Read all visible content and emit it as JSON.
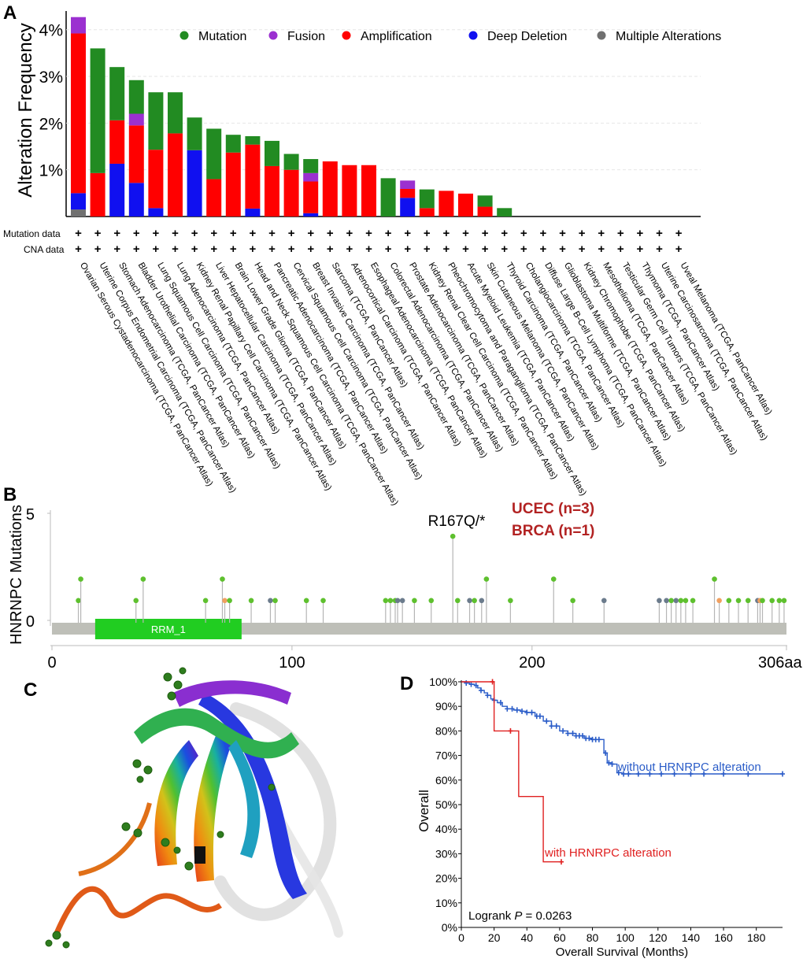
{
  "panel_labels": [
    "A",
    "B",
    "C",
    "D"
  ],
  "colors": {
    "mutation": "#228B22",
    "fusion": "#9B30D0",
    "amplification": "#FF0000",
    "deep_deletion": "#1010F0",
    "multiple": "#707070",
    "lollipop_green": "#5EC02E",
    "lollipop_orange": "#F0A060",
    "lollipop_grey": "#6B7B8C",
    "protein_bar": "#BEBFB8",
    "domain_green": "#21CD21",
    "km_blue": "#2A5CC8",
    "km_red": "#E02020",
    "annot_red": "#B22222"
  },
  "chart_data": [
    {
      "panel": "A",
      "type": "bar",
      "stacked": true,
      "ylabel": "Alteration Frequency",
      "ylim": [
        0,
        4.4
      ],
      "yticks": [
        "1%",
        "2%",
        "3%",
        "4%"
      ],
      "legend": [
        "Mutation",
        "Fusion",
        "Amplification",
        "Deep Deletion",
        "Multiple Alterations"
      ],
      "row_labels": [
        "Mutation data",
        "CNA data"
      ],
      "row_marker": "+",
      "categories": [
        "Ovarian Serous Cystadenocarcinoma (TCGA, PanCancer Atlas)",
        "Uterine Corpus Endometrial Carcinoma (TCGA, PanCancer Atlas)",
        "Stomach Adenocarcinoma (TCGA, PanCancer Atlas)",
        "Bladder Urothelial Carcinoma (TCGA, PanCancer Atlas)",
        "Lung Squamous Cell Carcinoma (TCGA, PanCancer Atlas)",
        "Lung Adenocarcinoma (TCGA, PanCancer Atlas)",
        "Kidney Renal Papillary Cell Carcinoma (TCGA, PanCancer Atlas)",
        "Liver Hepatocellular Carcinoma (TCGA, PanCancer Atlas)",
        "Brain Lower Grade Glioma (TCGA, PanCancer Atlas)",
        "Head and Neck Squamous Cell Carcinoma (TCGA, PanCancer Atlas)",
        "Pancreatic Adenocarcinoma (TCGA, PanCancer Atlas)",
        "Cervical Squamous Cell Carcinoma (TCGA, PanCancer Atlas)",
        "Breast Invasive Carcinoma (TCGA, PanCancer Atlas)",
        "Sarcoma (TCGA, PanCancer Atlas)",
        "Adrenocortical Carcinoma (TCGA, PanCancer Atlas)",
        "Esophageal Adenocarcinoma (TCGA, PanCancer Atlas)",
        "Colorectal Adenocarcinoma (TCGA, PanCancer Atlas)",
        "Prostate Adenocarcinoma (TCGA, PanCancer Atlas)",
        "Kidney Renal Clear Cell Carcinoma (TCGA, PanCancer Atlas)",
        "Pheochromocytoma and Paraganglioma (TCGA, PanCancer Atlas)",
        "Acute Myeloid Leukemia (TCGA, PanCancer Atlas)",
        "Skin Cutaneous Melanoma (TCGA, PanCancer Atlas)",
        "Thyroid Carcinoma (TCGA, PanCancer Atlas)",
        "Cholangiocarcinoma (TCGA, PanCancer Atlas)",
        "Diffuse Large B-Cell Lymphoma (TCGA, PanCancer Atlas)",
        "Glioblastoma Multiforme (TCGA, PanCancer Atlas)",
        "Kidney Chromophobe (TCGA, PanCancer Atlas)",
        "Mesothelioma (TCGA, PanCancer Atlas)",
        "Testicular Germ Cell Tumors (TCGA, PanCancer Atlas)",
        "Thymoma (TCGA, PanCancer Atlas)",
        "Uterine Carcinosarcoma (TCGA, PanCancer Atlas)",
        "Uveal Melanoma (TCGA, PanCancer Atlas)"
      ],
      "series": [
        {
          "name": "Multiple Alterations",
          "key": "multiple",
          "values": [
            0.15,
            0,
            0,
            0,
            0,
            0,
            0,
            0,
            0,
            0,
            0,
            0,
            0,
            0,
            0,
            0,
            0,
            0,
            0,
            0,
            0,
            0,
            0,
            0,
            0,
            0,
            0,
            0,
            0,
            0,
            0,
            0
          ]
        },
        {
          "name": "Deep Deletion",
          "key": "deep_deletion",
          "values": [
            0.35,
            0,
            1.13,
            0.72,
            0.18,
            0,
            1.42,
            0,
            0,
            0.17,
            0,
            0,
            0.07,
            0,
            0,
            0,
            0,
            0.4,
            0,
            0,
            0,
            0,
            0,
            0,
            0,
            0,
            0,
            0,
            0,
            0,
            0,
            0
          ]
        },
        {
          "name": "Amplification",
          "key": "amplification",
          "values": [
            3.42,
            0.93,
            0.93,
            1.23,
            1.25,
            1.78,
            0,
            0.8,
            1.37,
            1.37,
            1.08,
            1.0,
            0.68,
            1.18,
            1.1,
            1.1,
            0,
            0.19,
            0.18,
            0.55,
            0.49,
            0.21,
            0,
            0,
            0,
            0,
            0,
            0,
            0,
            0,
            0,
            0
          ]
        },
        {
          "name": "Fusion",
          "key": "fusion",
          "values": [
            0.35,
            0,
            0,
            0.25,
            0,
            0,
            0,
            0,
            0,
            0,
            0,
            0,
            0.18,
            0,
            0,
            0,
            0,
            0.18,
            0,
            0,
            0,
            0,
            0,
            0,
            0,
            0,
            0,
            0,
            0,
            0,
            0,
            0
          ]
        },
        {
          "name": "Mutation",
          "key": "mutation",
          "values": [
            0,
            2.67,
            1.14,
            0.72,
            1.23,
            0.88,
            0.7,
            1.08,
            0.38,
            0.18,
            0.54,
            0.34,
            0.3,
            0,
            0,
            0,
            0.82,
            0,
            0.4,
            0,
            0,
            0.24,
            0.18,
            0,
            0,
            0,
            0,
            0,
            0,
            0,
            0,
            0
          ]
        }
      ]
    },
    {
      "panel": "B",
      "type": "scatter",
      "subtype": "lollipop",
      "ylabel": "HNRNPC Mutations",
      "yticks": [
        "0",
        "5"
      ],
      "ylim": [
        0,
        5
      ],
      "xticks": [
        "0",
        "100",
        "200",
        "306aa"
      ],
      "xlim": [
        0,
        306
      ],
      "domain": {
        "label": "RRM_1",
        "start": 18,
        "end": 79
      },
      "hotspot_label": "R167Q/*",
      "annotations": [
        "UCEC (n=3)",
        "BRCA (n=1)"
      ],
      "points": [
        {
          "x": 11,
          "y": 1,
          "c": "lollipop_green"
        },
        {
          "x": 12,
          "y": 2,
          "c": "lollipop_green"
        },
        {
          "x": 35,
          "y": 1,
          "c": "lollipop_green"
        },
        {
          "x": 38,
          "y": 2,
          "c": "lollipop_green"
        },
        {
          "x": 64,
          "y": 1,
          "c": "lollipop_green"
        },
        {
          "x": 71,
          "y": 2,
          "c": "lollipop_green"
        },
        {
          "x": 72,
          "y": 1,
          "c": "lollipop_orange"
        },
        {
          "x": 74,
          "y": 1,
          "c": "lollipop_green"
        },
        {
          "x": 83,
          "y": 1,
          "c": "lollipop_green"
        },
        {
          "x": 91,
          "y": 1,
          "c": "lollipop_grey"
        },
        {
          "x": 93,
          "y": 1,
          "c": "lollipop_green"
        },
        {
          "x": 106,
          "y": 1,
          "c": "lollipop_green"
        },
        {
          "x": 113,
          "y": 1,
          "c": "lollipop_green"
        },
        {
          "x": 139,
          "y": 1,
          "c": "lollipop_green"
        },
        {
          "x": 141,
          "y": 1,
          "c": "lollipop_green"
        },
        {
          "x": 143,
          "y": 1,
          "c": "lollipop_green"
        },
        {
          "x": 144,
          "y": 1,
          "c": "lollipop_grey"
        },
        {
          "x": 146,
          "y": 1,
          "c": "lollipop_grey"
        },
        {
          "x": 151,
          "y": 1,
          "c": "lollipop_green"
        },
        {
          "x": 158,
          "y": 1,
          "c": "lollipop_green"
        },
        {
          "x": 167,
          "y": 4,
          "c": "lollipop_green"
        },
        {
          "x": 169,
          "y": 1,
          "c": "lollipop_green"
        },
        {
          "x": 174,
          "y": 1,
          "c": "lollipop_grey"
        },
        {
          "x": 176,
          "y": 1,
          "c": "lollipop_green"
        },
        {
          "x": 179,
          "y": 1,
          "c": "lollipop_grey"
        },
        {
          "x": 181,
          "y": 2,
          "c": "lollipop_green"
        },
        {
          "x": 191,
          "y": 1,
          "c": "lollipop_green"
        },
        {
          "x": 209,
          "y": 2,
          "c": "lollipop_green"
        },
        {
          "x": 217,
          "y": 1,
          "c": "lollipop_green"
        },
        {
          "x": 230,
          "y": 1,
          "c": "lollipop_grey"
        },
        {
          "x": 253,
          "y": 1,
          "c": "lollipop_grey"
        },
        {
          "x": 256,
          "y": 1,
          "c": "lollipop_grey"
        },
        {
          "x": 258,
          "y": 1,
          "c": "lollipop_green"
        },
        {
          "x": 260,
          "y": 1,
          "c": "lollipop_grey"
        },
        {
          "x": 262,
          "y": 1,
          "c": "lollipop_green"
        },
        {
          "x": 264,
          "y": 1,
          "c": "lollipop_green"
        },
        {
          "x": 267,
          "y": 1,
          "c": "lollipop_green"
        },
        {
          "x": 276,
          "y": 2,
          "c": "lollipop_green"
        },
        {
          "x": 278,
          "y": 1,
          "c": "lollipop_orange"
        },
        {
          "x": 282,
          "y": 1,
          "c": "lollipop_green"
        },
        {
          "x": 286,
          "y": 1,
          "c": "lollipop_green"
        },
        {
          "x": 290,
          "y": 1,
          "c": "lollipop_green"
        },
        {
          "x": 294,
          "y": 1,
          "c": "lollipop_grey"
        },
        {
          "x": 295,
          "y": 1,
          "c": "lollipop_orange"
        },
        {
          "x": 296,
          "y": 1,
          "c": "lollipop_green"
        },
        {
          "x": 300,
          "y": 1,
          "c": "lollipop_green"
        },
        {
          "x": 303,
          "y": 1,
          "c": "lollipop_green"
        },
        {
          "x": 305,
          "y": 1,
          "c": "lollipop_green"
        }
      ]
    },
    {
      "panel": "D",
      "type": "line",
      "subtype": "kaplan-meier",
      "xlabel": "Overall Survival (Months)",
      "ylabel": "Overall",
      "xlim": [
        0,
        196
      ],
      "ylim": [
        0,
        100
      ],
      "xticks": [
        "0",
        "20",
        "40",
        "60",
        "80",
        "100",
        "120",
        "140",
        "160",
        "180"
      ],
      "yticks": [
        "0%",
        "10%",
        "20%",
        "30%",
        "40%",
        "50%",
        "60%",
        "70%",
        "80%",
        "90%",
        "100%"
      ],
      "pvalue_text": {
        "prefix": "Logrank ",
        "p": "P",
        "rest": " = 0.0263"
      },
      "series": [
        {
          "name": "without HRNRPC alteration",
          "key": "km_blue",
          "x": [
            0,
            3,
            5,
            8,
            10,
            12,
            14,
            16,
            18,
            20,
            22,
            25,
            28,
            32,
            36,
            40,
            45,
            50,
            55,
            60,
            65,
            70,
            75,
            80,
            85,
            87,
            89,
            92,
            95,
            98,
            196
          ],
          "y": [
            100,
            99.5,
            99,
            98.5,
            97.5,
            96.5,
            95.5,
            94.5,
            93,
            92.5,
            91.5,
            90,
            89,
            88.5,
            88,
            87.5,
            86,
            84,
            82,
            80,
            79,
            78,
            77,
            76.5,
            76.5,
            71,
            67,
            66.5,
            63,
            62.5,
            62.5
          ],
          "censor_x": [
            3,
            6,
            9,
            12,
            16,
            20,
            24,
            28,
            31,
            34,
            37,
            40,
            43,
            46,
            48,
            52,
            55,
            58,
            62,
            65,
            68,
            70,
            72,
            74,
            76,
            78,
            80,
            82,
            84,
            88,
            90,
            92,
            96,
            99,
            102,
            108,
            115,
            122,
            130,
            140,
            148,
            160,
            175,
            196
          ]
        },
        {
          "name": "with HRNRPC alteration",
          "key": "km_red",
          "x": [
            0,
            20,
            20,
            35,
            35,
            50,
            50,
            61
          ],
          "y": [
            100,
            100,
            80,
            80,
            53.3,
            53.3,
            26.7,
            26.7
          ],
          "censor_x": [
            19,
            30,
            61
          ]
        }
      ]
    }
  ]
}
